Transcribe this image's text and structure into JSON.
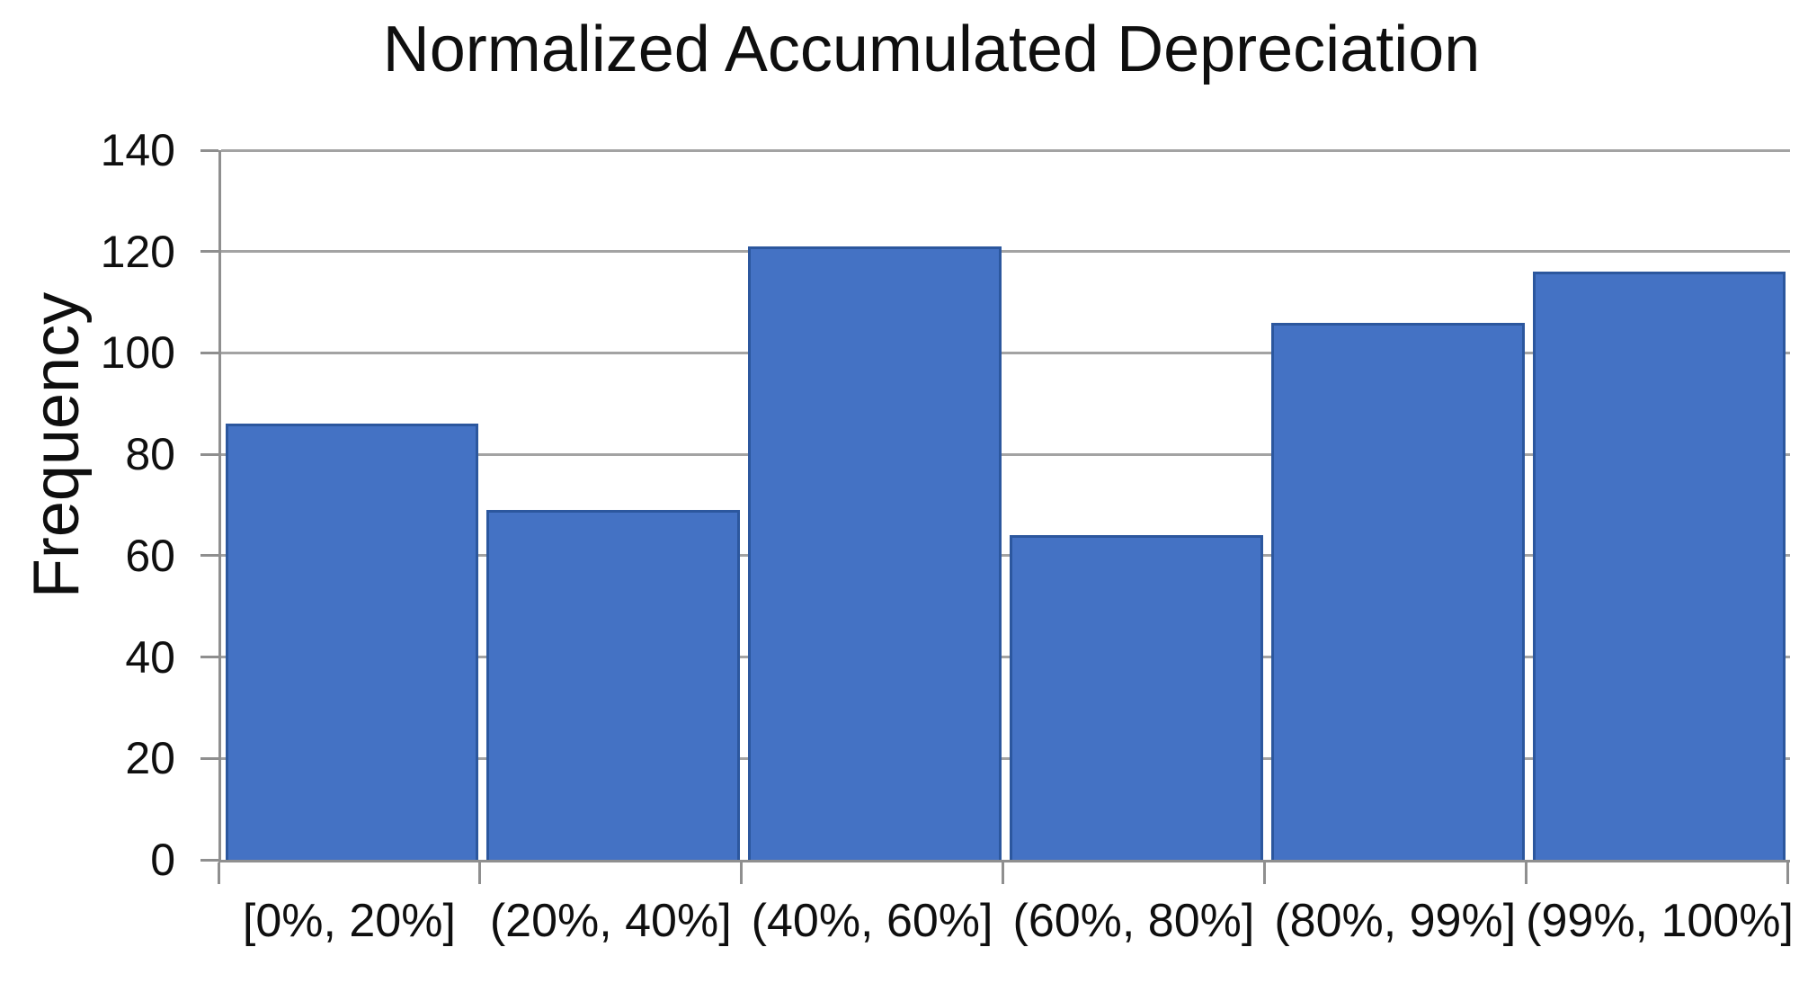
{
  "title": "Normalized Accumulated Depreciation",
  "chart_data": {
    "type": "bar",
    "subtype": "histogram",
    "title": "Normalized Accumulated Depreciation",
    "xlabel": "",
    "ylabel": "Frequency",
    "categories": [
      "[0%, 20%]",
      "(20%, 40%]",
      "(40%, 60%]",
      "(60%, 80%]",
      "(80%, 99%]",
      "(99%, 100%]"
    ],
    "values": [
      86,
      69,
      121,
      64,
      106,
      116
    ],
    "ylim": [
      0,
      140
    ],
    "yticks": [
      0,
      20,
      40,
      60,
      80,
      100,
      120,
      140
    ],
    "grid": true,
    "legend_position": "none",
    "colors": {
      "bar_fill": "#4472C4",
      "bar_border": "#2C579E",
      "gridline": "#A3A3A3",
      "axis_line": "#8F8F8F",
      "text": "#0F0F0F",
      "background": "#FFFFFF"
    }
  }
}
